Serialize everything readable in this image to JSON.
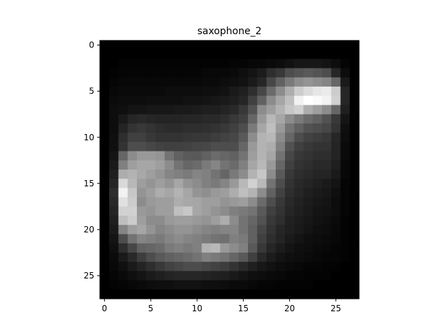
{
  "chart_data": {
    "type": "heatmap",
    "title": "saxophone_2",
    "xlabel": "",
    "ylabel": "",
    "colormap": "gray",
    "rows": 28,
    "cols": 28,
    "xlim": [
      -0.5,
      27.5
    ],
    "ylim": [
      27.5,
      -0.5
    ],
    "xticks": [
      0,
      5,
      10,
      15,
      20,
      25
    ],
    "yticks": [
      0,
      5,
      10,
      15,
      20,
      25
    ],
    "grid": false,
    "values": [
      [
        0.0,
        0.0,
        0.0,
        0.0,
        0.0,
        0.0,
        0.0,
        0.0,
        0.0,
        0.0,
        0.0,
        0.0,
        0.0,
        0.0,
        0.0,
        0.0,
        0.0,
        0.0,
        0.0,
        0.0,
        0.0,
        0.0,
        0.0,
        0.0,
        0.0,
        0.0,
        0.0,
        0.0
      ],
      [
        0.0,
        0.0,
        0.0,
        0.0,
        0.0,
        0.0,
        0.0,
        0.0,
        0.0,
        0.0,
        0.0,
        0.0,
        0.0,
        0.0,
        0.0,
        0.0,
        0.0,
        0.0,
        0.0,
        0.0,
        0.0,
        0.0,
        0.0,
        0.0,
        0.0,
        0.0,
        0.0,
        0.0
      ],
      [
        0.0,
        0.0,
        0.01,
        0.01,
        0.01,
        0.01,
        0.01,
        0.01,
        0.01,
        0.01,
        0.01,
        0.01,
        0.01,
        0.01,
        0.02,
        0.02,
        0.03,
        0.03,
        0.04,
        0.05,
        0.07,
        0.09,
        0.09,
        0.09,
        0.08,
        0.05,
        0.02,
        0.0
      ],
      [
        0.0,
        0.01,
        0.02,
        0.02,
        0.02,
        0.02,
        0.02,
        0.02,
        0.02,
        0.02,
        0.02,
        0.03,
        0.03,
        0.03,
        0.04,
        0.06,
        0.08,
        0.11,
        0.18,
        0.22,
        0.3,
        0.33,
        0.35,
        0.33,
        0.3,
        0.15,
        0.05,
        0.0
      ],
      [
        0.0,
        0.02,
        0.03,
        0.03,
        0.03,
        0.03,
        0.03,
        0.03,
        0.03,
        0.03,
        0.03,
        0.04,
        0.04,
        0.05,
        0.06,
        0.07,
        0.1,
        0.15,
        0.28,
        0.38,
        0.48,
        0.55,
        0.58,
        0.55,
        0.52,
        0.4,
        0.1,
        0.0
      ],
      [
        0.0,
        0.03,
        0.04,
        0.04,
        0.04,
        0.04,
        0.04,
        0.05,
        0.05,
        0.05,
        0.05,
        0.06,
        0.06,
        0.07,
        0.1,
        0.12,
        0.18,
        0.28,
        0.42,
        0.55,
        0.68,
        0.8,
        0.86,
        0.9,
        0.92,
        0.8,
        0.15,
        0.0
      ],
      [
        0.0,
        0.04,
        0.05,
        0.05,
        0.05,
        0.06,
        0.06,
        0.06,
        0.06,
        0.07,
        0.07,
        0.08,
        0.09,
        0.1,
        0.12,
        0.15,
        0.25,
        0.38,
        0.55,
        0.65,
        0.75,
        0.95,
        1.0,
        0.98,
        0.95,
        0.82,
        0.15,
        0.0
      ],
      [
        0.0,
        0.05,
        0.06,
        0.08,
        0.08,
        0.09,
        0.09,
        0.09,
        0.1,
        0.1,
        0.11,
        0.12,
        0.12,
        0.14,
        0.16,
        0.22,
        0.32,
        0.55,
        0.62,
        0.7,
        0.78,
        0.82,
        0.68,
        0.62,
        0.55,
        0.4,
        0.12,
        0.0
      ],
      [
        0.0,
        0.05,
        0.1,
        0.15,
        0.16,
        0.15,
        0.14,
        0.14,
        0.14,
        0.15,
        0.15,
        0.16,
        0.16,
        0.18,
        0.22,
        0.25,
        0.4,
        0.6,
        0.72,
        0.65,
        0.55,
        0.48,
        0.42,
        0.38,
        0.32,
        0.22,
        0.08,
        0.0
      ],
      [
        0.0,
        0.05,
        0.14,
        0.2,
        0.22,
        0.2,
        0.18,
        0.17,
        0.17,
        0.18,
        0.18,
        0.19,
        0.2,
        0.22,
        0.25,
        0.3,
        0.48,
        0.65,
        0.75,
        0.6,
        0.45,
        0.38,
        0.32,
        0.3,
        0.28,
        0.2,
        0.06,
        0.0
      ],
      [
        0.0,
        0.06,
        0.18,
        0.25,
        0.25,
        0.22,
        0.2,
        0.2,
        0.2,
        0.21,
        0.22,
        0.22,
        0.24,
        0.26,
        0.28,
        0.35,
        0.55,
        0.7,
        0.72,
        0.55,
        0.4,
        0.3,
        0.26,
        0.24,
        0.22,
        0.15,
        0.05,
        0.0
      ],
      [
        0.0,
        0.06,
        0.2,
        0.3,
        0.3,
        0.28,
        0.26,
        0.25,
        0.25,
        0.26,
        0.27,
        0.28,
        0.3,
        0.3,
        0.3,
        0.4,
        0.6,
        0.7,
        0.68,
        0.5,
        0.32,
        0.25,
        0.22,
        0.2,
        0.2,
        0.14,
        0.04,
        0.0
      ],
      [
        0.0,
        0.08,
        0.4,
        0.55,
        0.6,
        0.6,
        0.58,
        0.45,
        0.38,
        0.35,
        0.35,
        0.38,
        0.42,
        0.4,
        0.38,
        0.45,
        0.62,
        0.7,
        0.65,
        0.45,
        0.28,
        0.22,
        0.2,
        0.18,
        0.18,
        0.14,
        0.04,
        0.0
      ],
      [
        0.0,
        0.1,
        0.5,
        0.62,
        0.65,
        0.65,
        0.62,
        0.55,
        0.45,
        0.4,
        0.42,
        0.48,
        0.52,
        0.45,
        0.42,
        0.5,
        0.65,
        0.72,
        0.6,
        0.4,
        0.25,
        0.2,
        0.18,
        0.16,
        0.16,
        0.12,
        0.03,
        0.0
      ],
      [
        0.0,
        0.12,
        0.68,
        0.7,
        0.66,
        0.62,
        0.58,
        0.52,
        0.5,
        0.48,
        0.52,
        0.5,
        0.45,
        0.4,
        0.48,
        0.55,
        0.7,
        0.78,
        0.55,
        0.35,
        0.22,
        0.18,
        0.16,
        0.14,
        0.14,
        0.1,
        0.03,
        0.0
      ],
      [
        0.0,
        0.15,
        0.85,
        0.72,
        0.62,
        0.58,
        0.62,
        0.58,
        0.65,
        0.58,
        0.55,
        0.5,
        0.48,
        0.52,
        0.6,
        0.72,
        0.82,
        0.72,
        0.45,
        0.3,
        0.2,
        0.16,
        0.14,
        0.12,
        0.1,
        0.08,
        0.02,
        0.0
      ],
      [
        0.0,
        0.18,
        0.95,
        0.78,
        0.58,
        0.62,
        0.68,
        0.65,
        0.7,
        0.65,
        0.58,
        0.56,
        0.6,
        0.62,
        0.68,
        0.75,
        0.7,
        0.55,
        0.38,
        0.26,
        0.18,
        0.15,
        0.12,
        0.1,
        0.09,
        0.06,
        0.02,
        0.0
      ],
      [
        0.0,
        0.16,
        0.88,
        0.8,
        0.55,
        0.6,
        0.62,
        0.62,
        0.68,
        0.66,
        0.65,
        0.62,
        0.62,
        0.58,
        0.6,
        0.62,
        0.55,
        0.42,
        0.3,
        0.22,
        0.16,
        0.13,
        0.11,
        0.09,
        0.08,
        0.05,
        0.02,
        0.0
      ],
      [
        0.0,
        0.14,
        0.82,
        0.82,
        0.6,
        0.58,
        0.62,
        0.62,
        0.75,
        0.78,
        0.65,
        0.62,
        0.58,
        0.55,
        0.5,
        0.48,
        0.45,
        0.35,
        0.25,
        0.2,
        0.15,
        0.12,
        0.1,
        0.08,
        0.07,
        0.05,
        0.02,
        0.0
      ],
      [
        0.0,
        0.12,
        0.75,
        0.8,
        0.62,
        0.55,
        0.55,
        0.6,
        0.62,
        0.62,
        0.6,
        0.58,
        0.62,
        0.68,
        0.55,
        0.45,
        0.4,
        0.32,
        0.22,
        0.18,
        0.13,
        0.11,
        0.09,
        0.07,
        0.06,
        0.04,
        0.01,
        0.0
      ],
      [
        0.0,
        0.1,
        0.52,
        0.62,
        0.65,
        0.58,
        0.52,
        0.55,
        0.58,
        0.58,
        0.55,
        0.52,
        0.5,
        0.52,
        0.52,
        0.45,
        0.38,
        0.28,
        0.2,
        0.15,
        0.12,
        0.1,
        0.08,
        0.06,
        0.05,
        0.03,
        0.01,
        0.0
      ],
      [
        0.0,
        0.08,
        0.3,
        0.45,
        0.52,
        0.5,
        0.48,
        0.52,
        0.55,
        0.52,
        0.5,
        0.48,
        0.45,
        0.44,
        0.5,
        0.48,
        0.38,
        0.25,
        0.18,
        0.14,
        0.1,
        0.08,
        0.06,
        0.05,
        0.04,
        0.03,
        0.01,
        0.0
      ],
      [
        0.0,
        0.06,
        0.18,
        0.28,
        0.38,
        0.4,
        0.42,
        0.48,
        0.5,
        0.48,
        0.5,
        0.7,
        0.72,
        0.6,
        0.55,
        0.5,
        0.35,
        0.22,
        0.15,
        0.11,
        0.08,
        0.06,
        0.05,
        0.04,
        0.03,
        0.02,
        0.01,
        0.0
      ],
      [
        0.0,
        0.04,
        0.1,
        0.16,
        0.24,
        0.3,
        0.35,
        0.38,
        0.4,
        0.42,
        0.45,
        0.5,
        0.48,
        0.45,
        0.4,
        0.35,
        0.25,
        0.16,
        0.11,
        0.08,
        0.06,
        0.05,
        0.04,
        0.03,
        0.02,
        0.02,
        0.01,
        0.0
      ],
      [
        0.0,
        0.03,
        0.06,
        0.1,
        0.14,
        0.18,
        0.22,
        0.26,
        0.28,
        0.3,
        0.3,
        0.28,
        0.26,
        0.24,
        0.2,
        0.16,
        0.12,
        0.09,
        0.07,
        0.05,
        0.04,
        0.03,
        0.02,
        0.02,
        0.01,
        0.01,
        0.0,
        0.0
      ],
      [
        0.0,
        0.02,
        0.04,
        0.06,
        0.08,
        0.1,
        0.12,
        0.14,
        0.15,
        0.15,
        0.15,
        0.14,
        0.13,
        0.12,
        0.1,
        0.08,
        0.06,
        0.05,
        0.04,
        0.03,
        0.02,
        0.02,
        0.01,
        0.01,
        0.01,
        0.0,
        0.0,
        0.0
      ],
      [
        0.0,
        0.01,
        0.02,
        0.03,
        0.04,
        0.05,
        0.06,
        0.06,
        0.07,
        0.07,
        0.07,
        0.06,
        0.06,
        0.05,
        0.04,
        0.04,
        0.03,
        0.02,
        0.02,
        0.01,
        0.01,
        0.01,
        0.01,
        0.0,
        0.0,
        0.0,
        0.0,
        0.0
      ],
      [
        0.0,
        0.0,
        0.0,
        0.0,
        0.0,
        0.0,
        0.0,
        0.0,
        0.0,
        0.0,
        0.0,
        0.0,
        0.0,
        0.0,
        0.0,
        0.0,
        0.0,
        0.0,
        0.0,
        0.0,
        0.0,
        0.0,
        0.0,
        0.0,
        0.0,
        0.0,
        0.0,
        0.0
      ]
    ]
  }
}
